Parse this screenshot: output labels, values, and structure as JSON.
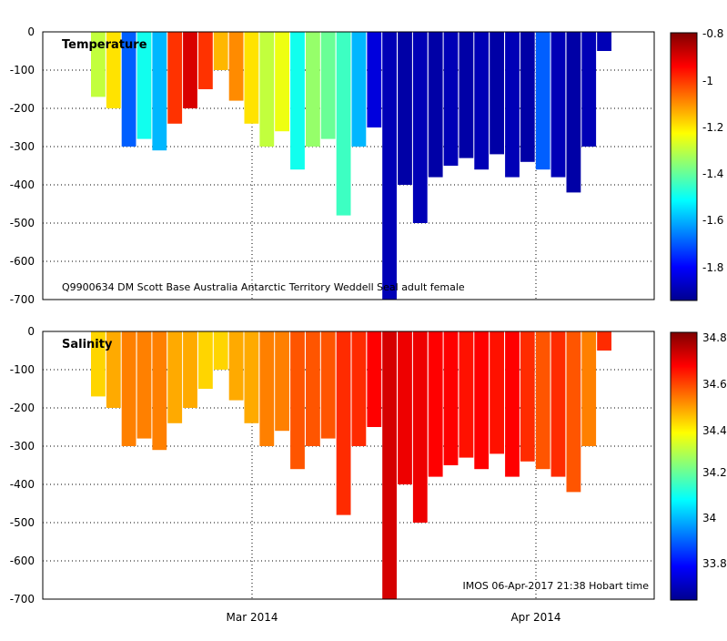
{
  "chart_data": [
    {
      "type": "heatmap",
      "label": "Temperature",
      "subtitle": "Q9900634 DM Scott Base Australia Antarctic Territory Weddell Seal adult female",
      "y_ticks": [
        "0",
        "-100",
        "-200",
        "-300",
        "-400",
        "-500",
        "-600",
        "-700"
      ],
      "ylim": [
        -700,
        0
      ],
      "x_ticks": [
        "Mar 2014",
        "Apr 2014"
      ],
      "colorbar": {
        "min": -1.95,
        "max": -0.8,
        "ticks": [
          "-0.8",
          "-1",
          "-1.2",
          "-1.4",
          "-1.6",
          "-1.8"
        ],
        "tick_values": [
          -0.8,
          -1.0,
          -1.2,
          -1.4,
          -1.6,
          -1.8
        ]
      },
      "profiles": [
        {
          "day": 0,
          "max_depth": 170,
          "value": -1.3
        },
        {
          "day": 2,
          "max_depth": 200,
          "value": -1.2
        },
        {
          "day": 4,
          "max_depth": 300,
          "value": -1.7
        },
        {
          "day": 6,
          "max_depth": 280,
          "value": -1.5
        },
        {
          "day": 8,
          "max_depth": 310,
          "value": -1.6
        },
        {
          "day": 10,
          "max_depth": 240,
          "value": -1.0
        },
        {
          "day": 12,
          "max_depth": 200,
          "value": -0.9
        },
        {
          "day": 14,
          "max_depth": 150,
          "value": -1.0
        },
        {
          "day": 16,
          "max_depth": 100,
          "value": -1.15
        },
        {
          "day": 18,
          "max_depth": 180,
          "value": -1.1
        },
        {
          "day": 20,
          "max_depth": 240,
          "value": -1.2
        },
        {
          "day": 22,
          "max_depth": 300,
          "value": -1.3
        },
        {
          "day": 24,
          "max_depth": 260,
          "value": -1.25
        },
        {
          "day": 26,
          "max_depth": 360,
          "value": -1.5
        },
        {
          "day": 28,
          "max_depth": 300,
          "value": -1.35
        },
        {
          "day": 30,
          "max_depth": 280,
          "value": -1.4
        },
        {
          "day": 32,
          "max_depth": 480,
          "value": -1.45
        },
        {
          "day": 34,
          "max_depth": 300,
          "value": -1.6
        },
        {
          "day": 36,
          "max_depth": 250,
          "value": -1.85
        },
        {
          "day": 38,
          "max_depth": 700,
          "value": -1.9
        },
        {
          "day": 40,
          "max_depth": 400,
          "value": -1.92
        },
        {
          "day": 42,
          "max_depth": 500,
          "value": -1.9
        },
        {
          "day": 44,
          "max_depth": 380,
          "value": -1.92
        },
        {
          "day": 46,
          "max_depth": 350,
          "value": -1.9
        },
        {
          "day": 48,
          "max_depth": 330,
          "value": -1.92
        },
        {
          "day": 50,
          "max_depth": 360,
          "value": -1.9
        },
        {
          "day": 52,
          "max_depth": 320,
          "value": -1.92
        },
        {
          "day": 54,
          "max_depth": 380,
          "value": -1.9
        },
        {
          "day": 56,
          "max_depth": 340,
          "value": -1.92
        },
        {
          "day": 58,
          "max_depth": 360,
          "value": -1.7
        },
        {
          "day": 60,
          "max_depth": 380,
          "value": -1.9
        },
        {
          "day": 62,
          "max_depth": 420,
          "value": -1.92
        },
        {
          "day": 64,
          "max_depth": 300,
          "value": -1.9
        },
        {
          "day": 66,
          "max_depth": 50,
          "value": -1.9
        }
      ]
    },
    {
      "type": "heatmap",
      "label": "Salinity",
      "footer": "IMOS 06-Apr-2017 21:38 Hobart time",
      "y_ticks": [
        "0",
        "-100",
        "-200",
        "-300",
        "-400",
        "-500",
        "-600",
        "-700"
      ],
      "ylim": [
        -700,
        0
      ],
      "x_ticks": [
        "Mar 2014",
        "Apr 2014"
      ],
      "colorbar": {
        "min": 33.65,
        "max": 34.85,
        "ticks": [
          "34.8",
          "34.6",
          "34.4",
          "34.2",
          "34",
          "33.8"
        ],
        "tick_values": [
          34.8,
          34.6,
          34.4,
          34.2,
          34.0,
          33.8
        ]
      },
      "profiles": [
        {
          "day": 0,
          "max_depth": 170,
          "value": 34.45
        },
        {
          "day": 2,
          "max_depth": 200,
          "value": 34.5
        },
        {
          "day": 4,
          "max_depth": 300,
          "value": 34.55
        },
        {
          "day": 6,
          "max_depth": 280,
          "value": 34.55
        },
        {
          "day": 8,
          "max_depth": 310,
          "value": 34.55
        },
        {
          "day": 10,
          "max_depth": 240,
          "value": 34.5
        },
        {
          "day": 12,
          "max_depth": 200,
          "value": 34.5
        },
        {
          "day": 14,
          "max_depth": 150,
          "value": 34.45
        },
        {
          "day": 16,
          "max_depth": 100,
          "value": 34.45
        },
        {
          "day": 18,
          "max_depth": 180,
          "value": 34.5
        },
        {
          "day": 20,
          "max_depth": 240,
          "value": 34.5
        },
        {
          "day": 22,
          "max_depth": 300,
          "value": 34.55
        },
        {
          "day": 24,
          "max_depth": 260,
          "value": 34.55
        },
        {
          "day": 26,
          "max_depth": 360,
          "value": 34.6
        },
        {
          "day": 28,
          "max_depth": 300,
          "value": 34.6
        },
        {
          "day": 30,
          "max_depth": 280,
          "value": 34.6
        },
        {
          "day": 32,
          "max_depth": 480,
          "value": 34.65
        },
        {
          "day": 34,
          "max_depth": 300,
          "value": 34.65
        },
        {
          "day": 36,
          "max_depth": 250,
          "value": 34.7
        },
        {
          "day": 38,
          "max_depth": 700,
          "value": 34.75
        },
        {
          "day": 40,
          "max_depth": 400,
          "value": 34.72
        },
        {
          "day": 42,
          "max_depth": 500,
          "value": 34.72
        },
        {
          "day": 44,
          "max_depth": 380,
          "value": 34.7
        },
        {
          "day": 46,
          "max_depth": 350,
          "value": 34.7
        },
        {
          "day": 48,
          "max_depth": 330,
          "value": 34.68
        },
        {
          "day": 50,
          "max_depth": 360,
          "value": 34.7
        },
        {
          "day": 52,
          "max_depth": 320,
          "value": 34.68
        },
        {
          "day": 54,
          "max_depth": 380,
          "value": 34.7
        },
        {
          "day": 56,
          "max_depth": 340,
          "value": 34.65
        },
        {
          "day": 58,
          "max_depth": 360,
          "value": 34.6
        },
        {
          "day": 60,
          "max_depth": 380,
          "value": 34.65
        },
        {
          "day": 62,
          "max_depth": 420,
          "value": 34.6
        },
        {
          "day": 64,
          "max_depth": 300,
          "value": 34.55
        },
        {
          "day": 66,
          "max_depth": 50,
          "value": 34.65
        }
      ]
    }
  ]
}
